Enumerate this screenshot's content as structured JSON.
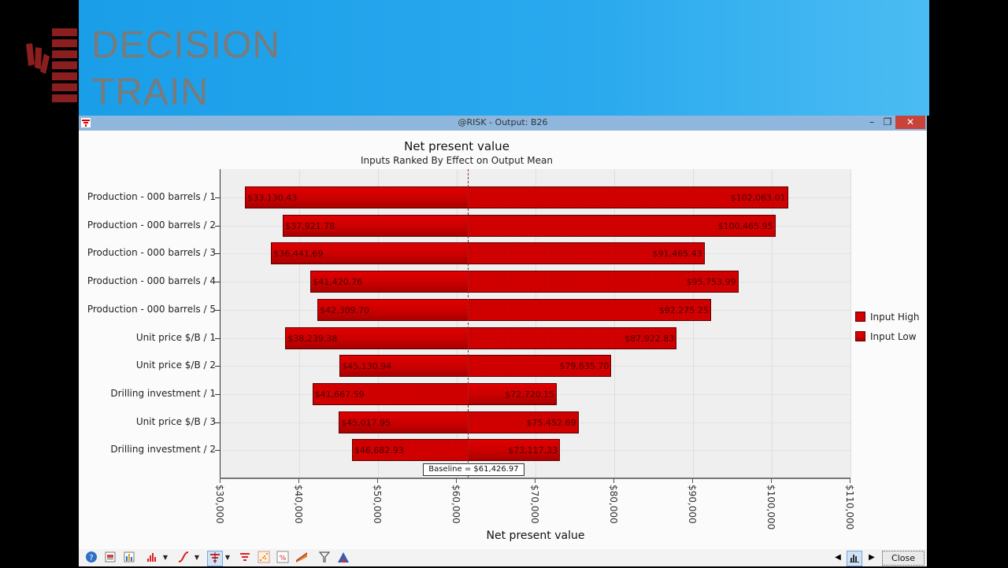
{
  "branding": {
    "line1": "DECISION",
    "line2": "TRAIN"
  },
  "window": {
    "title": "@RISK - Output: B26",
    "min_label": "–",
    "max_label": "❐",
    "close_label": "✕"
  },
  "chart_data": {
    "type": "bar",
    "subtype": "tornado",
    "title": "Net present value",
    "subtitle": "Inputs Ranked By Effect on Output Mean",
    "xlabel": "Net present value",
    "ylabel": "",
    "xlim": [
      30000,
      110000
    ],
    "x_ticks": [
      "$30,000",
      "$40,000",
      "$50,000",
      "$60,000",
      "$70,000",
      "$80,000",
      "$90,000",
      "$100,000",
      "$110,000"
    ],
    "grid": true,
    "baseline": 61426.97,
    "baseline_label": "Baseline = $61,426.97",
    "legend": {
      "position": "right",
      "entries": [
        "Input High",
        "Input Low"
      ]
    },
    "categories": [
      "Production - 000 barrels / 1",
      "Production - 000 barrels / 2",
      "Production - 000 barrels / 3",
      "Production - 000 barrels / 4",
      "Production - 000 barrels / 5",
      "Unit price $/B / 1",
      "Unit price $/B / 2",
      "Drilling investment / 1",
      "Unit price $/B / 3",
      "Drilling investment / 2"
    ],
    "series": [
      {
        "name": "Input Low",
        "values": [
          33130.43,
          37921.78,
          36441.69,
          41420.76,
          42309.7,
          38239.38,
          45130.94,
          72720.15,
          45017.95,
          73117.33
        ]
      },
      {
        "name": "Input High",
        "values": [
          102063.01,
          100465.95,
          91465.43,
          95753.99,
          92275.25,
          87922.83,
          79635.7,
          41667.59,
          75452.69,
          46682.93
        ]
      }
    ],
    "bars": [
      {
        "label": "Production - 000 barrels / 1",
        "left": 33130.43,
        "right": 102063.01,
        "left_text": "$33,130.43",
        "right_text": "$102,063.01",
        "left_is": "low"
      },
      {
        "label": "Production - 000 barrels / 2",
        "left": 37921.78,
        "right": 100465.95,
        "left_text": "$37,921.78",
        "right_text": "$100,465.95",
        "left_is": "low"
      },
      {
        "label": "Production - 000 barrels / 3",
        "left": 36441.69,
        "right": 91465.43,
        "left_text": "$36,441.69",
        "right_text": "$91,465.43",
        "left_is": "low"
      },
      {
        "label": "Production - 000 barrels / 4",
        "left": 41420.76,
        "right": 95753.99,
        "left_text": "$41,420.76",
        "right_text": "$95,753.99",
        "left_is": "low"
      },
      {
        "label": "Production - 000 barrels / 5",
        "left": 42309.7,
        "right": 92275.25,
        "left_text": "$42,309.70",
        "right_text": "$92,275.25",
        "left_is": "low"
      },
      {
        "label": "Unit price $/B / 1",
        "left": 38239.38,
        "right": 87922.83,
        "left_text": "$38,239.38",
        "right_text": "$87,922.83",
        "left_is": "low"
      },
      {
        "label": "Unit price $/B / 2",
        "left": 45130.94,
        "right": 79635.7,
        "left_text": "$45,130.94",
        "right_text": "$79,635.70",
        "left_is": "low"
      },
      {
        "label": "Drilling investment / 1",
        "left": 41667.59,
        "right": 72720.15,
        "left_text": "$41,667.59",
        "right_text": "$72,720.15",
        "left_is": "high"
      },
      {
        "label": "Unit price $/B / 3",
        "left": 45017.95,
        "right": 75452.69,
        "left_text": "$45,017.95",
        "right_text": "$75,452.69",
        "left_is": "low"
      },
      {
        "label": "Drilling investment / 2",
        "left": 46682.93,
        "right": 73117.33,
        "left_text": "$46,682.93",
        "right_text": "$73,117.33",
        "left_is": "high"
      }
    ]
  },
  "toolbar": {
    "buttons": [
      "help-icon",
      "report-icon",
      "graph-options-icon",
      "histogram-icon",
      "cumulative-icon",
      "tornado-icon",
      "tornado-alt-icon",
      "scatter-icon",
      "summary-percent-icon",
      "spider-icon",
      "filter-icon",
      "overlay-icon"
    ],
    "close_label": "Close",
    "prev_label": "◀",
    "next_label": "▶"
  }
}
